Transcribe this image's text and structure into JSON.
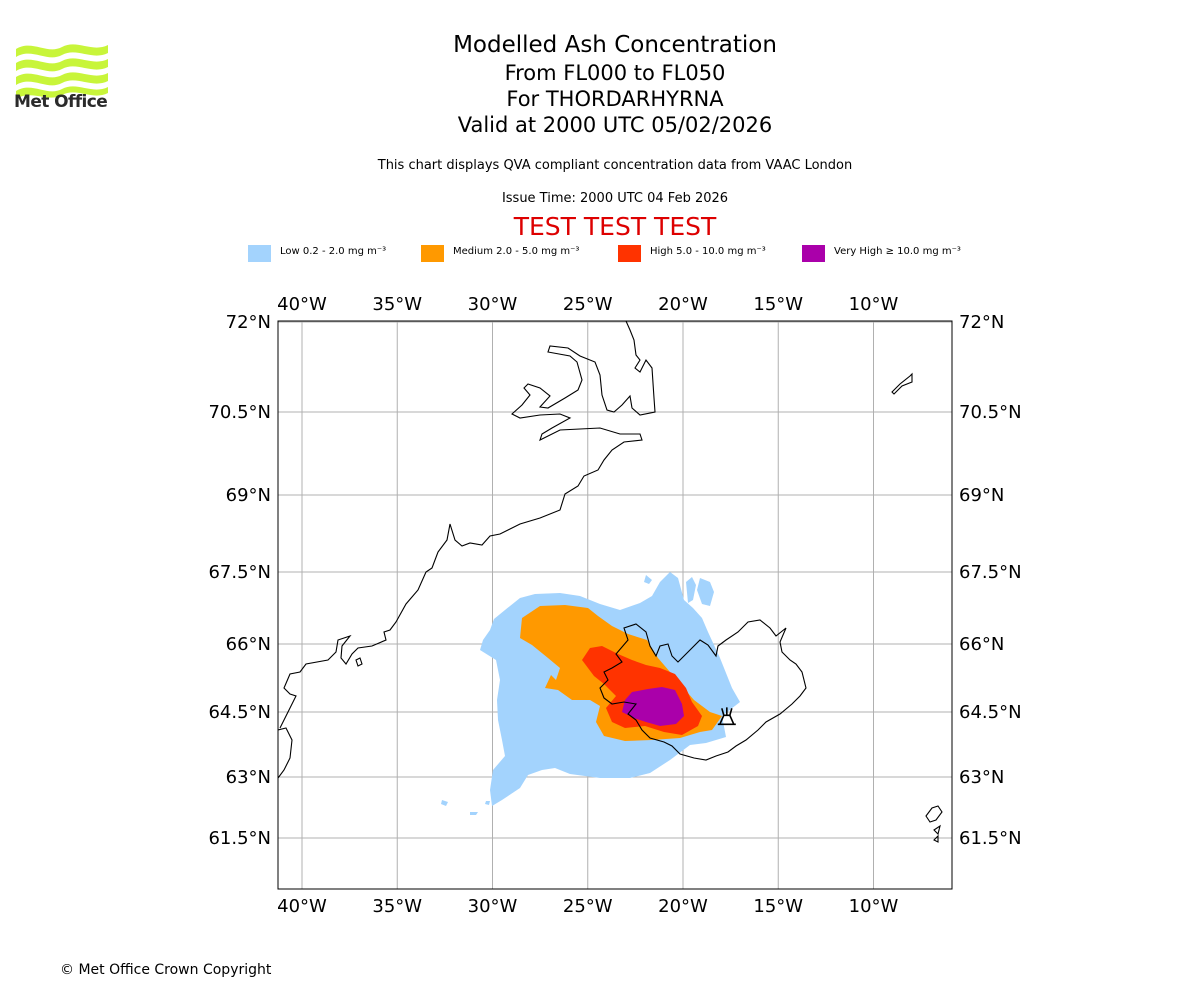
{
  "header": {
    "logo_text": "Met Office",
    "title": "Modelled Ash Concentration",
    "level_range": "From FL000 to FL050",
    "volcano_line": "For THORDARHYRNA",
    "valid_time": "Valid at 2000 UTC 05/02/2026",
    "description": "This chart displays QVA compliant concentration data from VAAC London",
    "issue_time": "Issue Time: 2000 UTC 04 Feb 2026",
    "test_banner": "TEST TEST TEST"
  },
  "legend": [
    {
      "label": "Low 0.2 - 2.0 mg m⁻³",
      "color": "#a3d3fd"
    },
    {
      "label": "Medium 2.0 - 5.0 mg m⁻³",
      "color": "#ff9900"
    },
    {
      "label": "High 5.0 - 10.0 mg m⁻³",
      "color": "#ff3300"
    },
    {
      "label": "Very High ≥ 10.0 mg m⁻³",
      "color": "#aa00aa"
    }
  ],
  "map": {
    "lon_ticks": [
      {
        "value": -40,
        "label": "40°W"
      },
      {
        "value": -35,
        "label": "35°W"
      },
      {
        "value": -30,
        "label": "30°W"
      },
      {
        "value": -25,
        "label": "25°W"
      },
      {
        "value": -20,
        "label": "20°W"
      },
      {
        "value": -15,
        "label": "15°W"
      },
      {
        "value": -10,
        "label": "10°W"
      }
    ],
    "lat_ticks": [
      {
        "value": 72,
        "label": "72°N"
      },
      {
        "value": 70.5,
        "label": "70.5°N"
      },
      {
        "value": 69,
        "label": "69°N"
      },
      {
        "value": 67.5,
        "label": "67.5°N"
      },
      {
        "value": 66,
        "label": "66°N"
      },
      {
        "value": 64.5,
        "label": "64.5°N"
      },
      {
        "value": 63,
        "label": "63°N"
      },
      {
        "value": 61.5,
        "label": "61.5°N"
      }
    ],
    "volcano_symbol": "volcano-icon",
    "volcano_lon": -17.7,
    "volcano_lat": 64.4
  },
  "footer": {
    "copyright": "© Met Office Crown Copyright"
  }
}
